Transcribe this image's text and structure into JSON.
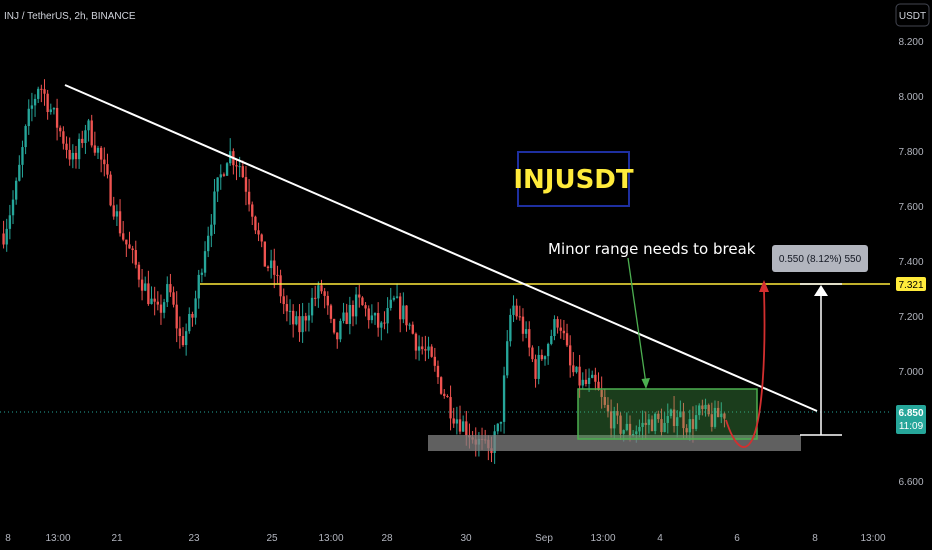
{
  "header": {
    "symbol_info": "INJ / TetherUS, 2h, BINANCE",
    "currency_button": "USDT"
  },
  "colors": {
    "background": "#000000",
    "up": "#26a69a",
    "down": "#ef5350",
    "resistance": "#ffeb3b",
    "trendline": "#ffffff",
    "range_box": "#4caf50",
    "support_zone": "#808080",
    "title_box": "#1e2fa0",
    "title_text": "#ffeb3b",
    "forecast": "#d32f2f",
    "arrow": "#4caf50"
  },
  "chart_data": {
    "type": "candlestick",
    "symbol": "INJ / TetherUS",
    "interval": "2h",
    "exchange": "BINANCE",
    "ylim": [
      6.55,
      8.25
    ],
    "y_ticks": [
      "8.200",
      "8.000",
      "7.800",
      "7.600",
      "7.400",
      "7.200",
      "7.000",
      "6.600"
    ],
    "x_ticks": [
      "8",
      "13:00",
      "21",
      "23",
      "25",
      "13:00",
      "28",
      "30",
      "Sep",
      "13:00",
      "4",
      "6",
      "8",
      "13:00"
    ],
    "resistance_level": 7.321,
    "resistance_label": "7.321",
    "last_price": "6.850",
    "countdown": "11:09",
    "title_box": "INJUSDT",
    "annotation": "Minor range needs to break",
    "measure_label": "0.550 (8.12%) 550",
    "price_path": [
      7.5,
      7.65,
      7.9,
      8.05,
      7.95,
      7.85,
      7.75,
      7.9,
      7.8,
      7.65,
      7.5,
      7.4,
      7.3,
      7.2,
      7.3,
      7.1,
      7.2,
      7.45,
      7.65,
      7.8,
      7.75,
      7.6,
      7.4,
      7.35,
      7.2,
      7.15,
      7.25,
      7.3,
      7.1,
      7.2,
      7.25,
      7.2,
      7.15,
      7.25,
      7.2,
      7.1,
      7.05,
      6.95,
      6.85,
      6.8,
      6.75,
      6.7,
      6.8,
      7.25,
      7.15,
      7.0,
      7.1,
      7.2,
      7.0,
      6.95,
      6.95,
      6.85,
      6.8,
      6.78,
      6.8,
      6.82,
      6.8,
      6.85,
      6.8,
      6.85,
      6.82,
      6.85
    ]
  }
}
